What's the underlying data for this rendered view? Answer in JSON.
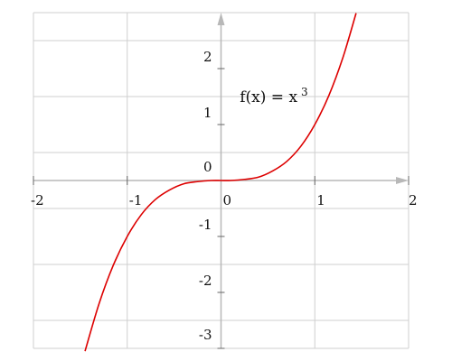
{
  "chart_data": {
    "type": "line",
    "title": "",
    "xlabel": "",
    "ylabel": "",
    "xlim": [
      -2,
      2
    ],
    "ylim": [
      -3,
      3
    ],
    "x_ticks": [
      -2,
      -1,
      0,
      1,
      2
    ],
    "y_ticks": [
      -3,
      -2,
      -1,
      0,
      1,
      2
    ],
    "x_tick_labels": [
      "-2",
      "-1",
      "0",
      "1",
      "2"
    ],
    "y_tick_labels": [
      "-3",
      "-2",
      "-1",
      "0",
      "1",
      "2"
    ],
    "grid": true,
    "series": [
      {
        "x": [
          -1.45,
          -1.3,
          -1.15,
          -1.0,
          -0.85,
          -0.7,
          -0.55,
          -0.4,
          -0.25,
          -0.1,
          0.0,
          0.1,
          0.25,
          0.4,
          0.55,
          0.7,
          0.85,
          1.0,
          1.15,
          1.3,
          1.44
        ],
        "y": [
          -3.05,
          -2.2,
          -1.52,
          -1.0,
          -0.61,
          -0.34,
          -0.17,
          -0.06,
          -0.02,
          0.0,
          0.0,
          0.0,
          0.02,
          0.06,
          0.17,
          0.34,
          0.61,
          1.0,
          1.52,
          2.2,
          2.99
        ],
        "color": "#dd0000"
      }
    ],
    "annotation": {
      "text": "f(x) = x",
      "superscript": "3",
      "x": 0.2,
      "y": 1.4
    }
  },
  "colors": {
    "grid": "#cfcfcf",
    "axis": "#b8b8b8",
    "curve": "#dd0000"
  }
}
